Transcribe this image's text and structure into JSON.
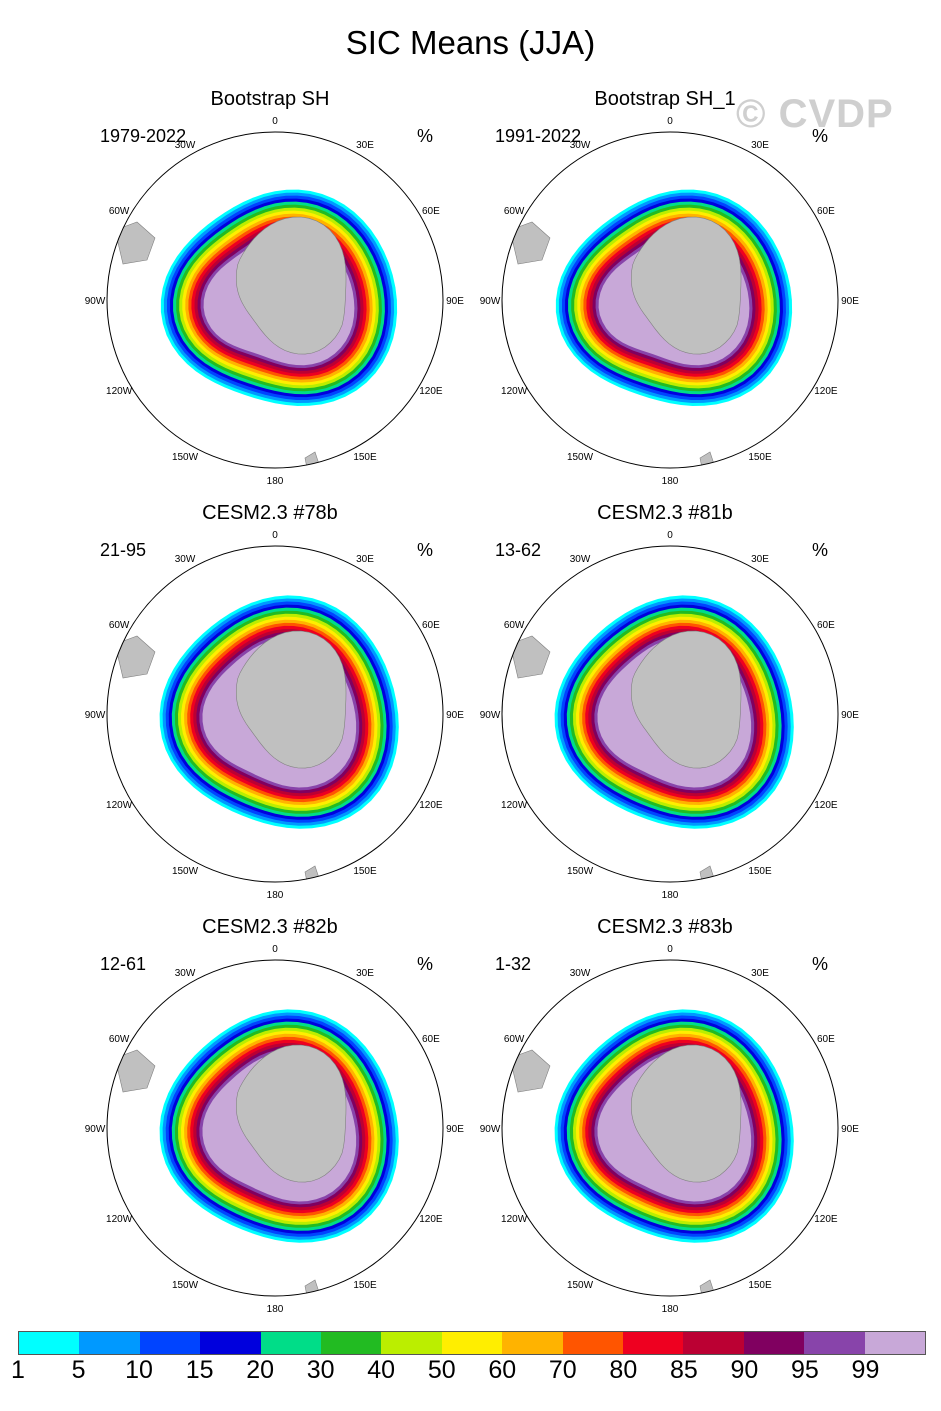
{
  "figure": {
    "title": "SIC Means (JJA)",
    "watermark": "© CVDP"
  },
  "panels": [
    {
      "title": "Bootstrap SH",
      "period": "1979-2022",
      "units": "%"
    },
    {
      "title": "Bootstrap SH_1",
      "period": "1991-2022",
      "units": "%"
    },
    {
      "title": "CESM2.3 #78b",
      "period": "21-95",
      "units": "%"
    },
    {
      "title": "CESM2.3 #81b",
      "period": "13-62",
      "units": "%"
    },
    {
      "title": "CESM2.3 #82b",
      "period": "12-61",
      "units": "%"
    },
    {
      "title": "CESM2.3 #83b",
      "period": "1-32",
      "units": "%"
    }
  ],
  "map": {
    "longitude_labels": [
      "0",
      "30E",
      "60E",
      "90E",
      "120E",
      "150E",
      "180",
      "150W",
      "120W",
      "90W",
      "60W",
      "30W"
    ]
  },
  "colorbar": {
    "colors": [
      "#00ffff",
      "#0099ff",
      "#0044ff",
      "#0000dd",
      "#00dd88",
      "#22bb22",
      "#bbee00",
      "#ffee00",
      "#ffb300",
      "#ff5500",
      "#ee0020",
      "#bb0033",
      "#800060",
      "#8844aa",
      "#c8a8d8"
    ],
    "labels": [
      "1",
      "5",
      "10",
      "15",
      "20",
      "30",
      "40",
      "50",
      "60",
      "70",
      "80",
      "85",
      "90",
      "95",
      "99"
    ]
  },
  "colors": {
    "land": "#c0c0c0",
    "coast": "#808080",
    "border": "#000000"
  }
}
